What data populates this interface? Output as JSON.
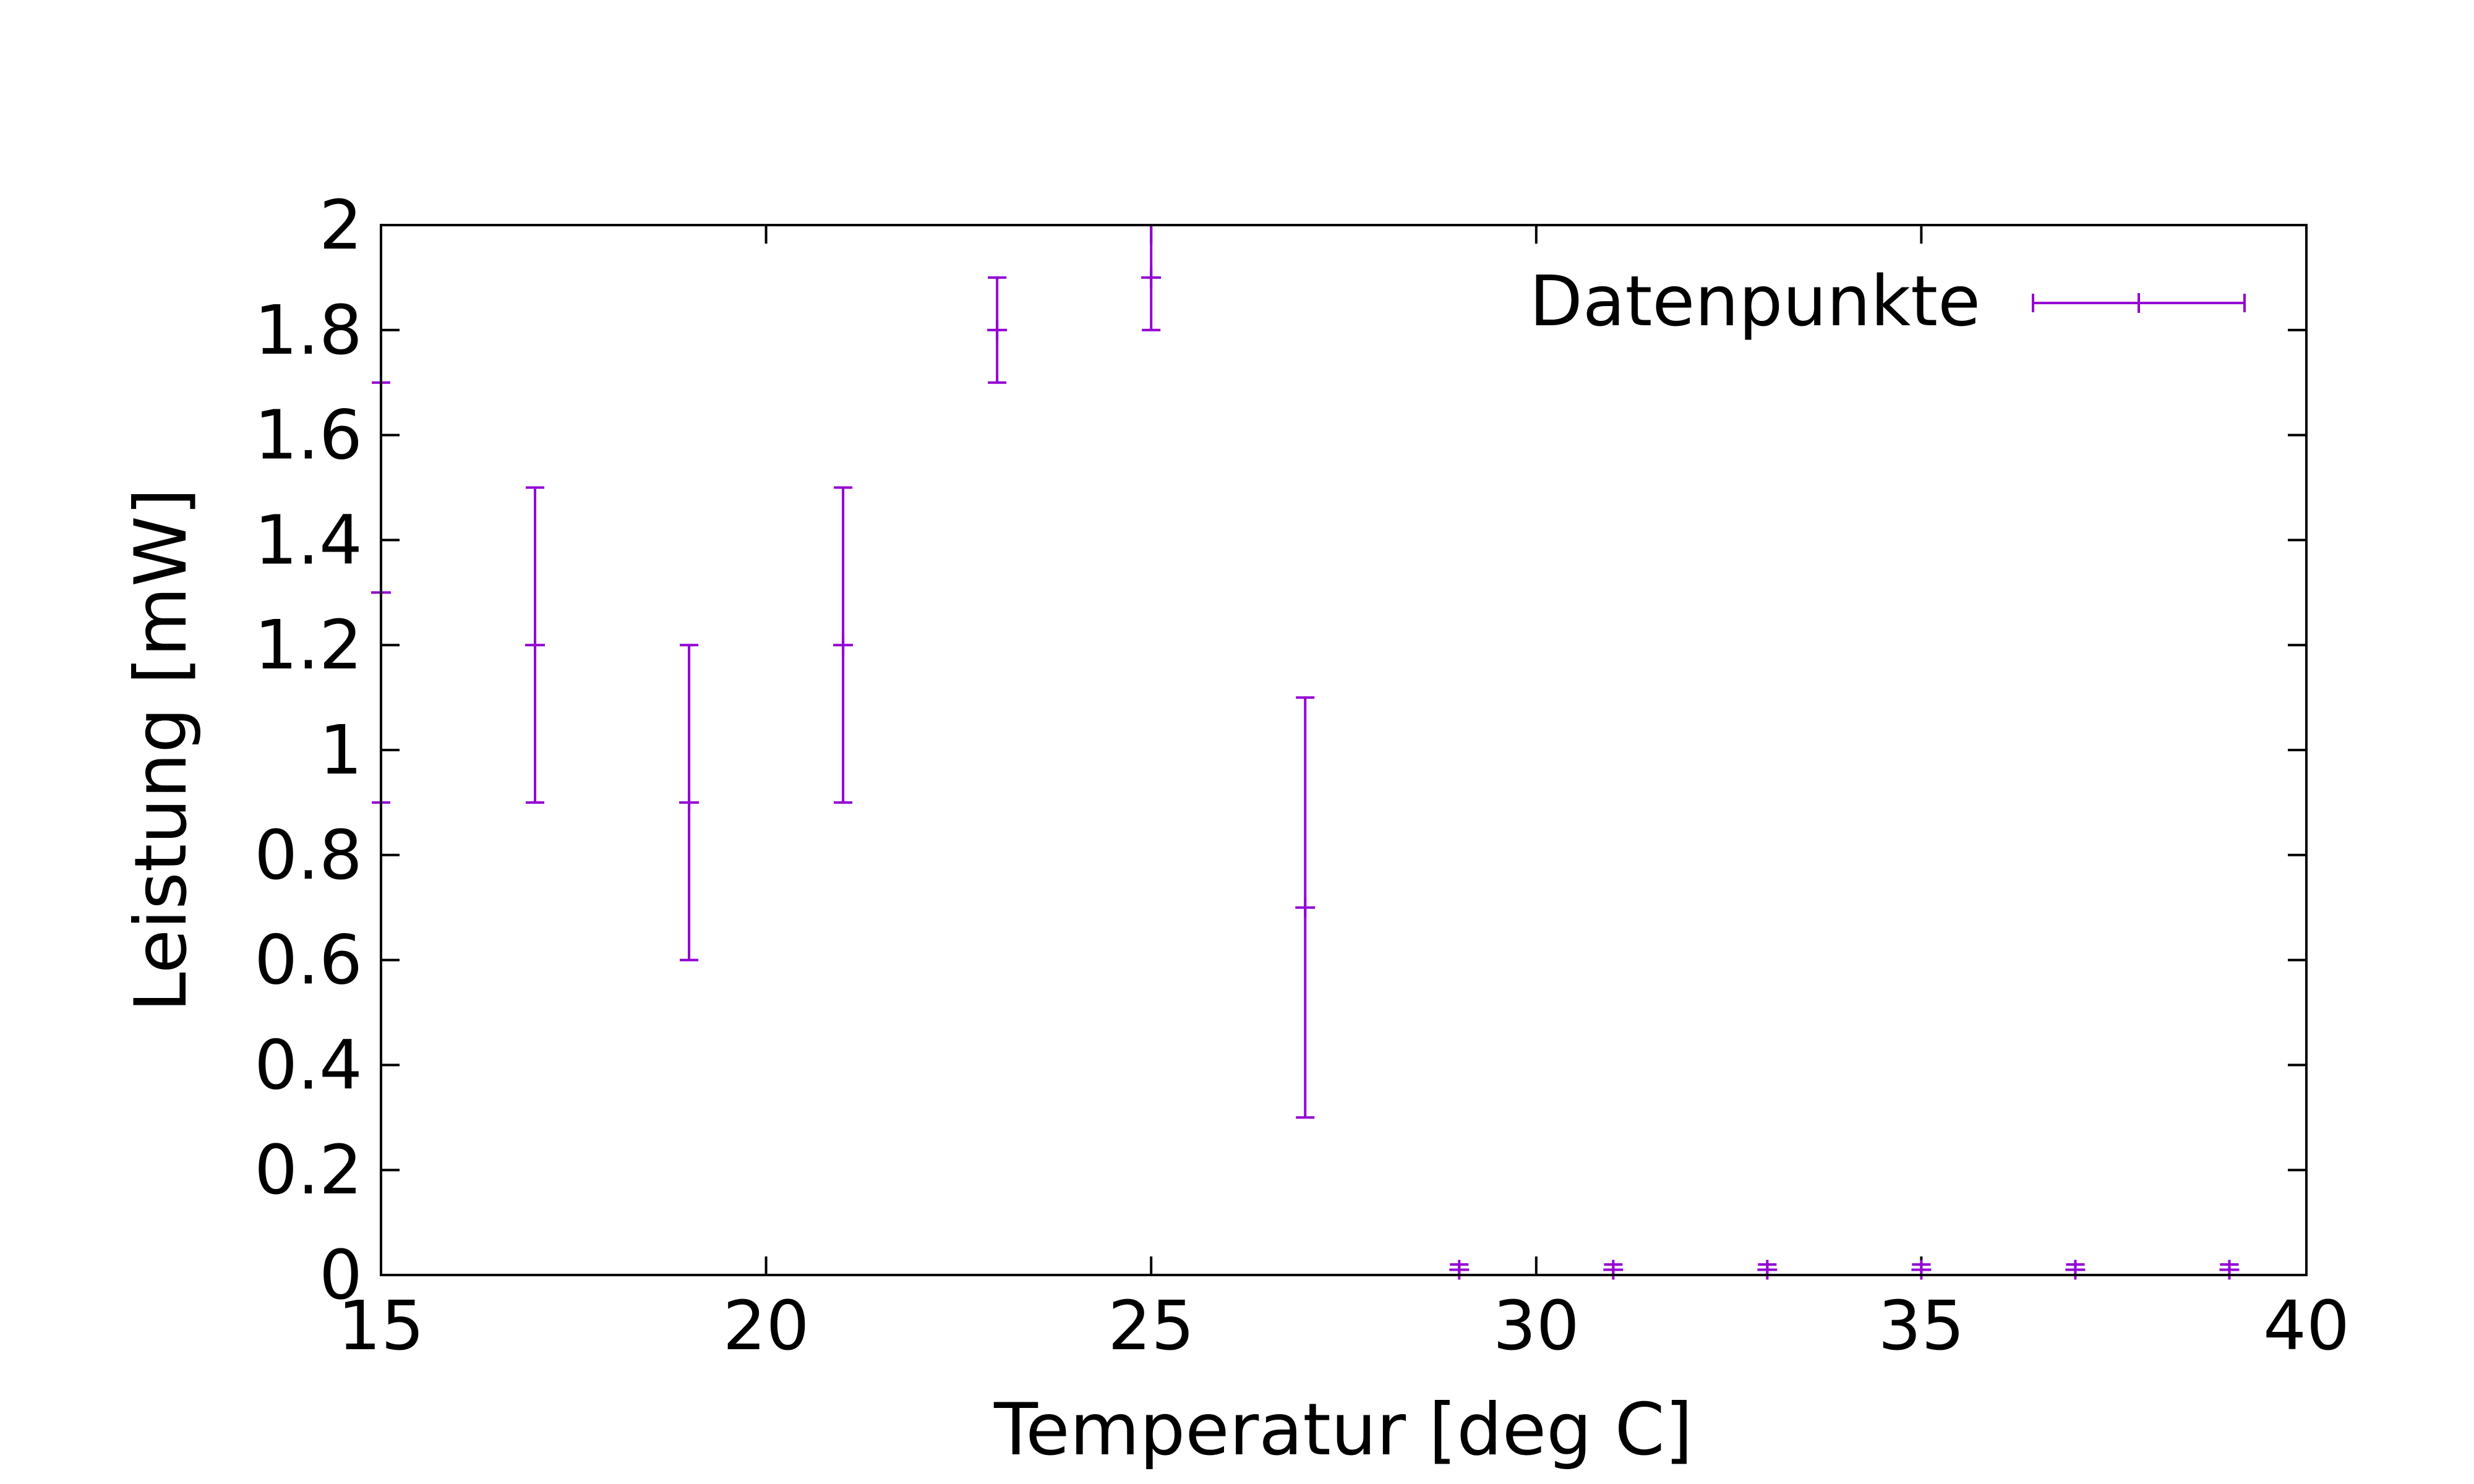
{
  "chart_data": {
    "type": "scatter",
    "title": "",
    "xlabel": "Temperatur [deg C]",
    "ylabel": "Leistung [mW]",
    "xlim": [
      15,
      40
    ],
    "ylim": [
      0,
      2
    ],
    "xticks": [
      "15",
      "20",
      "25",
      "30",
      "35",
      "40"
    ],
    "yticks": [
      "0",
      "0.2",
      "0.4",
      "0.6",
      "0.8",
      "1",
      "1.2",
      "1.4",
      "1.6",
      "1.8",
      "2"
    ],
    "grid": false,
    "legend_position": "top-right",
    "series": [
      {
        "name": "Datenpunkte",
        "color": "#9400d3",
        "marker": "plus",
        "error_bars": "vertical",
        "points": [
          {
            "x": 15,
            "y": 1.3,
            "ylow": 0.9,
            "yhigh": 1.7
          },
          {
            "x": 17,
            "y": 1.2,
            "ylow": 0.9,
            "yhigh": 1.5
          },
          {
            "x": 19,
            "y": 0.9,
            "ylow": 0.6,
            "yhigh": 1.2
          },
          {
            "x": 21,
            "y": 1.2,
            "ylow": 0.9,
            "yhigh": 1.5
          },
          {
            "x": 23,
            "y": 1.8,
            "ylow": 1.7,
            "yhigh": 1.9
          },
          {
            "x": 25,
            "y": 1.9,
            "ylow": 1.8,
            "yhigh": 2.0
          },
          {
            "x": 27,
            "y": 0.7,
            "ylow": 0.3,
            "yhigh": 1.1
          },
          {
            "x": 29,
            "y": 0.01,
            "ylow": 0.0,
            "yhigh": 0.02
          },
          {
            "x": 31,
            "y": 0.01,
            "ylow": 0.0,
            "yhigh": 0.02
          },
          {
            "x": 33,
            "y": 0.01,
            "ylow": 0.0,
            "yhigh": 0.02
          },
          {
            "x": 35,
            "y": 0.01,
            "ylow": 0.0,
            "yhigh": 0.02
          },
          {
            "x": 37,
            "y": 0.01,
            "ylow": 0.0,
            "yhigh": 0.02
          },
          {
            "x": 39,
            "y": 0.01,
            "ylow": 0.0,
            "yhigh": 0.02
          }
        ]
      }
    ]
  }
}
